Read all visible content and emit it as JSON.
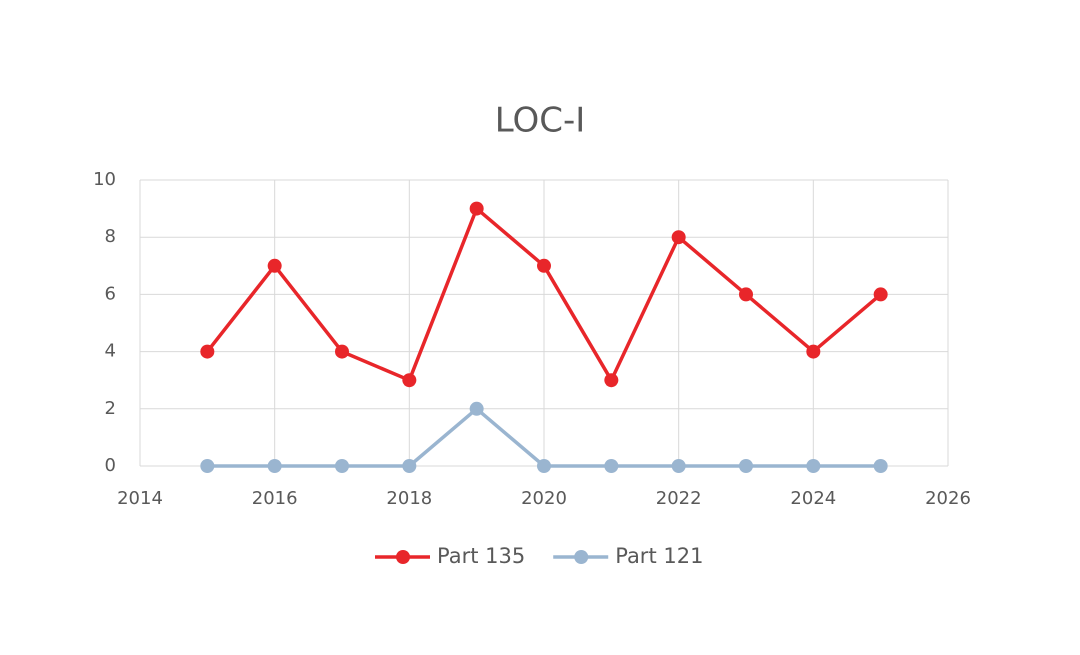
{
  "chart_data": {
    "type": "line",
    "title": "LOC-I",
    "x": [
      2015,
      2016,
      2017,
      2018,
      2019,
      2020,
      2021,
      2022,
      2023,
      2024,
      2025
    ],
    "series": [
      {
        "name": "Part 135",
        "color": "#e8262a",
        "values": [
          4,
          7,
          4,
          3,
          9,
          7,
          3,
          8,
          6,
          4,
          6
        ]
      },
      {
        "name": "Part 121",
        "color": "#9ab5d0",
        "values": [
          0,
          0,
          0,
          0,
          2,
          0,
          0,
          0,
          0,
          0,
          0
        ]
      }
    ],
    "xlim": [
      2014,
      2026
    ],
    "xticks": [
      2014,
      2016,
      2018,
      2020,
      2022,
      2024,
      2026
    ],
    "ylim": [
      0,
      10
    ],
    "yticks": [
      0,
      2,
      4,
      6,
      8,
      10
    ],
    "grid": true,
    "legend": "bottom"
  }
}
